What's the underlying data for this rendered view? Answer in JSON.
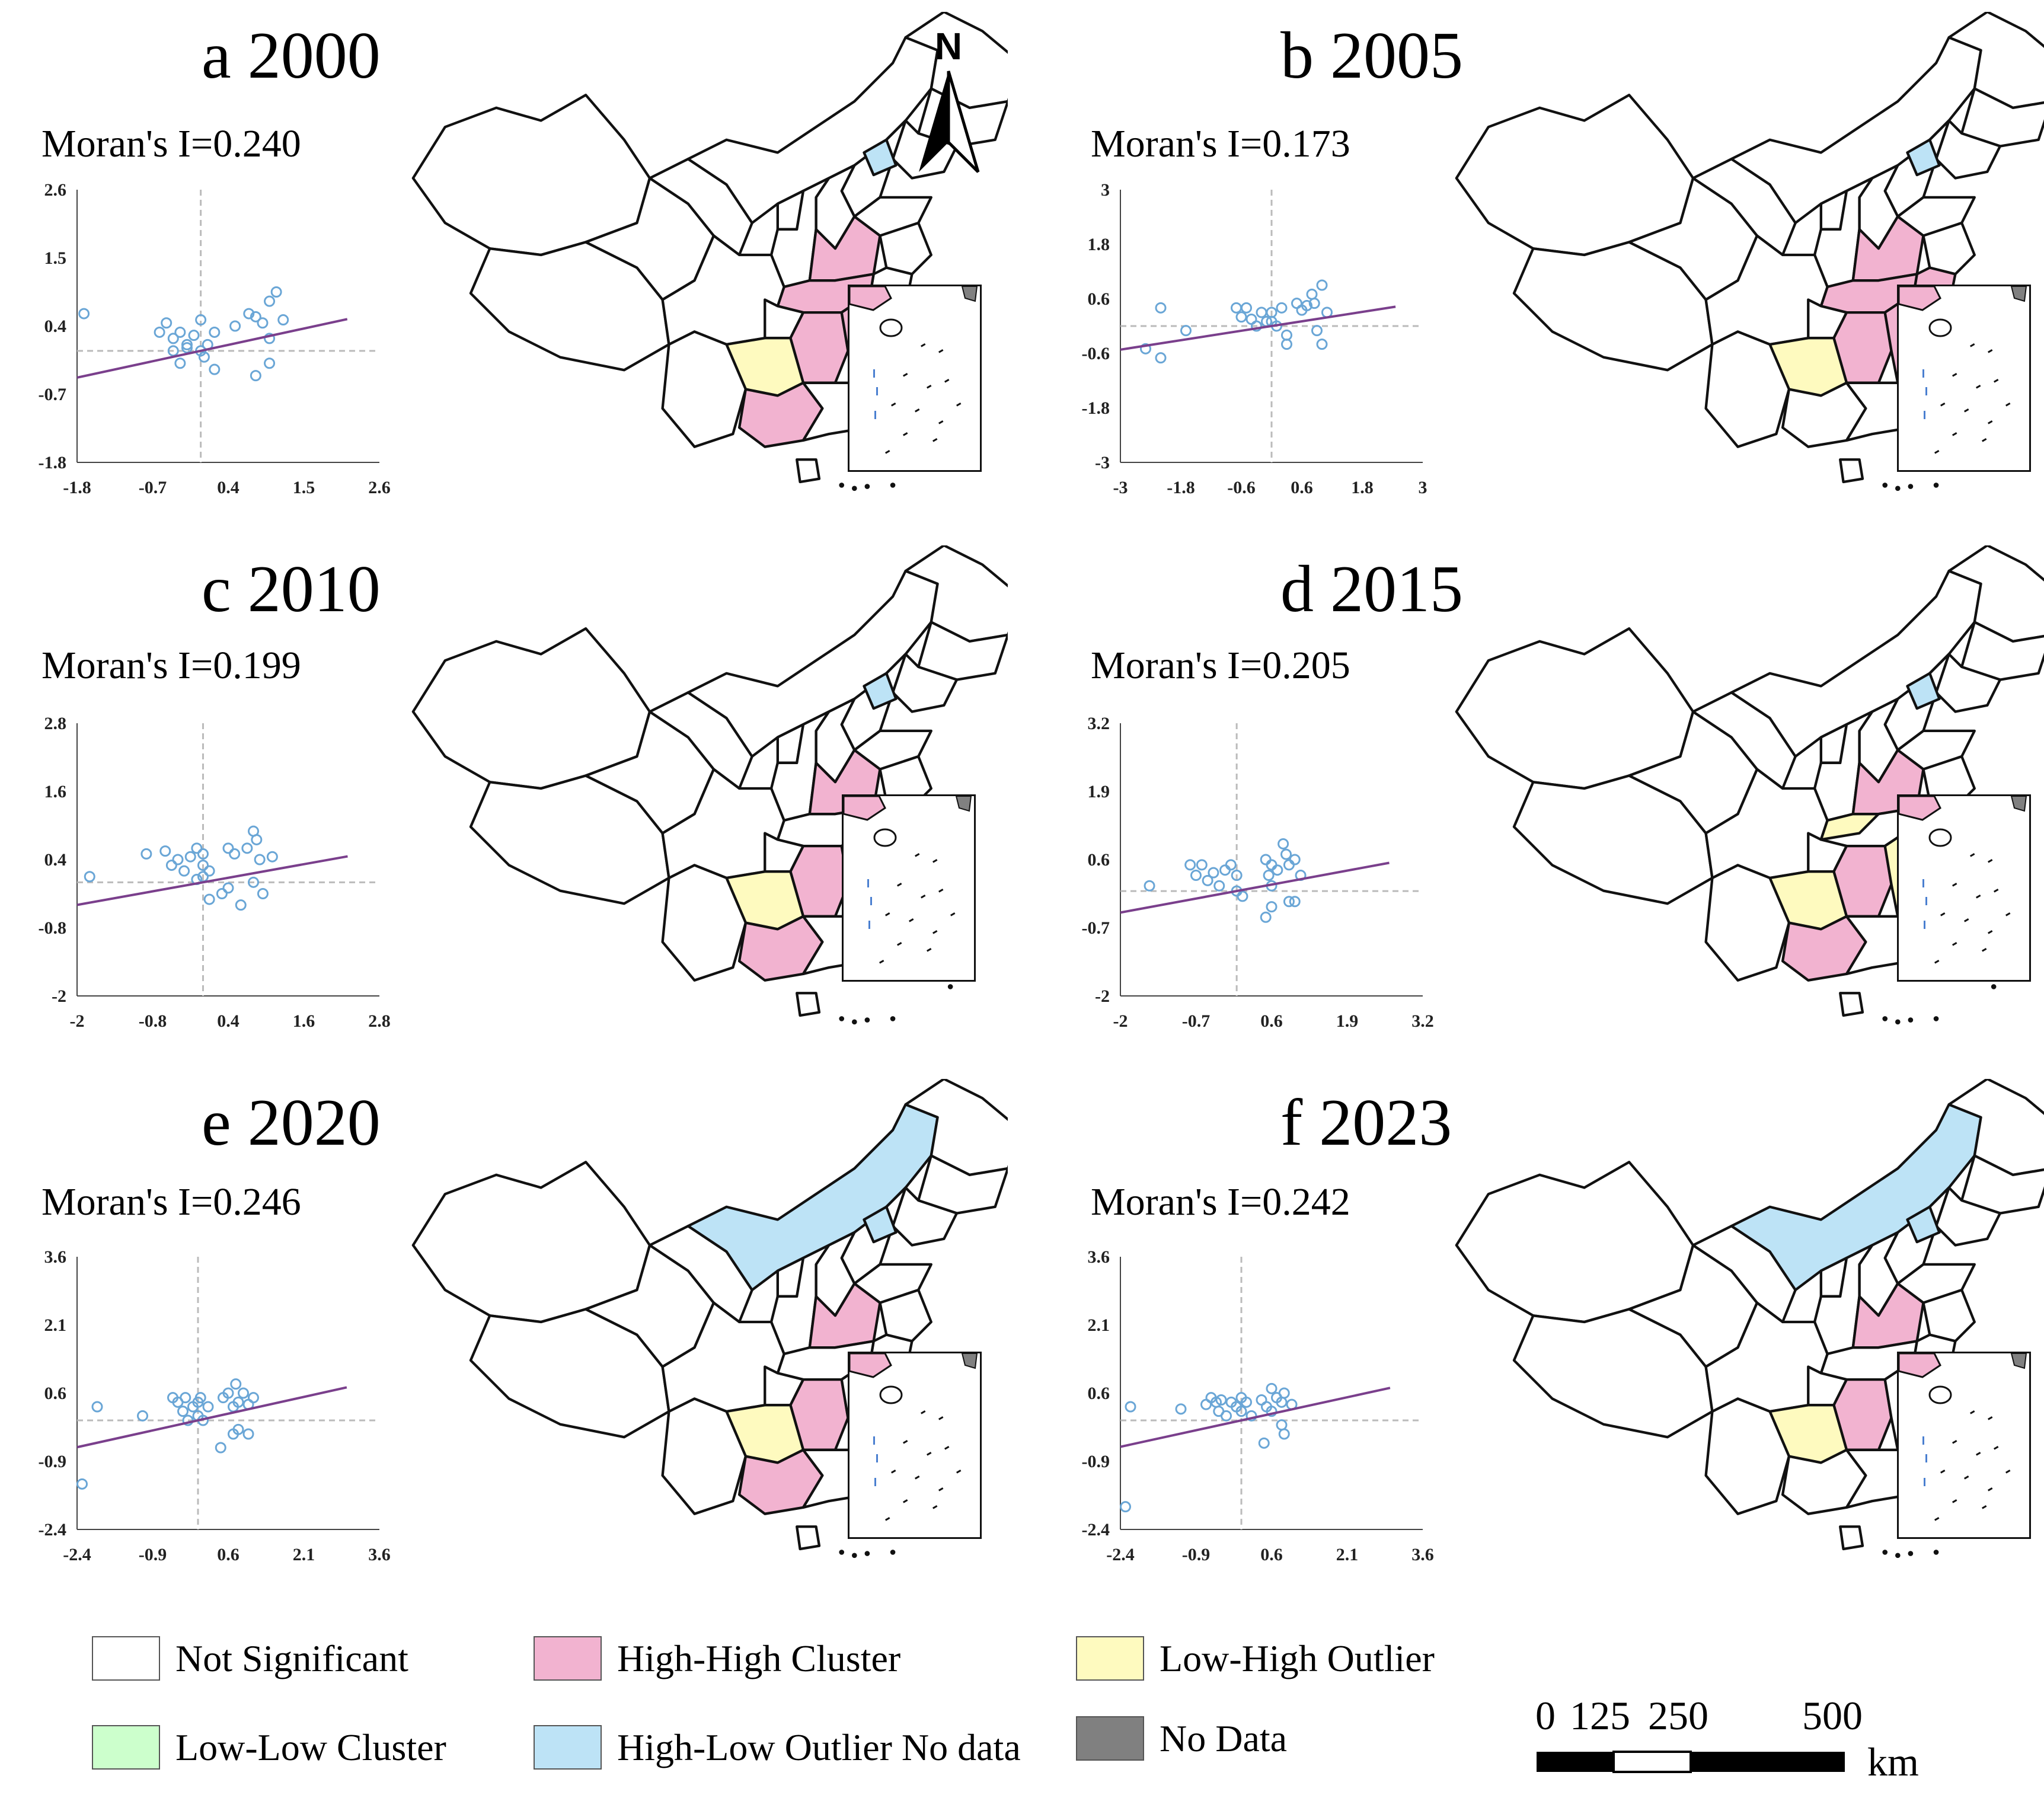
{
  "panels": [
    {
      "title": "a 2000",
      "moran": "Moran's I=0.240",
      "plot": {
        "xticks": [
          "-1.8",
          "-0.7",
          "0.4",
          "1.5",
          "2.6"
        ],
        "yticks": [
          "2.6",
          "1.5",
          "0.4",
          "-0.7",
          "-1.8"
        ],
        "xlim": [
          -1.8,
          2.6
        ],
        "ylim": [
          -1.8,
          2.6
        ],
        "slope": 0.24,
        "points": [
          [
            -1.7,
            0.6
          ],
          [
            -0.6,
            0.3
          ],
          [
            -0.5,
            0.45
          ],
          [
            -0.4,
            0.2
          ],
          [
            -0.3,
            0.3
          ],
          [
            -0.2,
            0.1
          ],
          [
            -0.1,
            0.25
          ],
          [
            0.0,
            0.5
          ],
          [
            0.1,
            0.1
          ],
          [
            0.2,
            0.3
          ],
          [
            -0.4,
            0.0
          ],
          [
            -0.3,
            -0.2
          ],
          [
            0.05,
            -0.1
          ],
          [
            0.2,
            -0.3
          ],
          [
            0.5,
            0.4
          ],
          [
            0.7,
            0.6
          ],
          [
            0.8,
            0.55
          ],
          [
            0.9,
            0.45
          ],
          [
            1.0,
            0.8
          ],
          [
            1.1,
            0.95
          ],
          [
            1.2,
            0.5
          ],
          [
            1.0,
            0.2
          ],
          [
            0.8,
            -0.4
          ],
          [
            1.0,
            -0.2
          ],
          [
            -0.2,
            0.05
          ],
          [
            0.0,
            0.0
          ]
        ],
        "xaxis_at": 0.0,
        "yaxis_at": 0.0
      },
      "map": {
        "hh": [
          "henan",
          "hubei",
          "hunan",
          "jiangxi",
          "guangxi"
        ],
        "lh": [
          "guizhou",
          "fujian"
        ],
        "hl": [
          "beijing"
        ]
      }
    },
    {
      "title": "b 2005",
      "moran": "Moran's I=0.173",
      "plot": {
        "xticks": [
          "-3",
          "-1.8",
          "-0.6",
          "0.6",
          "1.8",
          "3"
        ],
        "yticks": [
          "3",
          "1.8",
          "0.6",
          "-0.6",
          "-1.8",
          "-3"
        ],
        "xlim": [
          -3,
          3
        ],
        "ylim": [
          -3,
          3
        ],
        "slope": 0.173,
        "points": [
          [
            -2.5,
            -0.5
          ],
          [
            -2.2,
            -0.7
          ],
          [
            -2.2,
            0.4
          ],
          [
            -1.7,
            -0.1
          ],
          [
            -0.7,
            0.4
          ],
          [
            -0.6,
            0.2
          ],
          [
            -0.5,
            0.4
          ],
          [
            -0.4,
            0.15
          ],
          [
            -0.3,
            0.0
          ],
          [
            -0.2,
            0.3
          ],
          [
            -0.1,
            0.1
          ],
          [
            0.0,
            0.3
          ],
          [
            0.1,
            0.0
          ],
          [
            0.2,
            0.4
          ],
          [
            0.3,
            -0.2
          ],
          [
            0.3,
            -0.4
          ],
          [
            0.5,
            0.5
          ],
          [
            0.6,
            0.35
          ],
          [
            0.7,
            0.45
          ],
          [
            0.8,
            0.7
          ],
          [
            1.0,
            0.9
          ],
          [
            0.9,
            -0.1
          ],
          [
            1.0,
            -0.4
          ],
          [
            1.1,
            0.3
          ],
          [
            0.85,
            0.5
          ],
          [
            0.0,
            0.1
          ]
        ],
        "xaxis_at": 0.0,
        "yaxis_at": 0.0
      },
      "map": {
        "hh": [
          "henan",
          "hubei",
          "hunan",
          "jiangxi",
          "anhui"
        ],
        "lh": [
          "guizhou",
          "fujian"
        ],
        "hl": [
          "beijing"
        ]
      }
    },
    {
      "title": "c 2010",
      "moran": "Moran's I=0.199",
      "plot": {
        "xticks": [
          "-2",
          "-0.8",
          "0.4",
          "1.6",
          "2.8"
        ],
        "yticks": [
          "2.8",
          "1.6",
          "0.4",
          "-0.8",
          "-2"
        ],
        "xlim": [
          -2,
          2.8
        ],
        "ylim": [
          -2,
          2.8
        ],
        "slope": 0.199,
        "points": [
          [
            -1.8,
            0.1
          ],
          [
            -0.9,
            0.5
          ],
          [
            -0.6,
            0.55
          ],
          [
            -0.5,
            0.3
          ],
          [
            -0.4,
            0.4
          ],
          [
            -0.3,
            0.2
          ],
          [
            -0.2,
            0.45
          ],
          [
            -0.1,
            0.6
          ],
          [
            0.0,
            0.5
          ],
          [
            0.0,
            0.3
          ],
          [
            0.1,
            0.2
          ],
          [
            -0.1,
            0.05
          ],
          [
            0.1,
            -0.3
          ],
          [
            0.4,
            0.6
          ],
          [
            0.5,
            0.5
          ],
          [
            0.7,
            0.6
          ],
          [
            0.8,
            0.9
          ],
          [
            0.85,
            0.75
          ],
          [
            0.9,
            0.4
          ],
          [
            1.1,
            0.45
          ],
          [
            0.4,
            -0.1
          ],
          [
            0.6,
            -0.4
          ],
          [
            0.8,
            0.0
          ],
          [
            0.95,
            -0.2
          ],
          [
            0.3,
            -0.2
          ],
          [
            0.0,
            0.1
          ]
        ],
        "xaxis_at": 0.0,
        "yaxis_at": 0.0
      },
      "map": {
        "hh": [
          "henan",
          "hunan",
          "guangxi"
        ],
        "lh": [
          "guizhou",
          "fujian"
        ],
        "hl": [
          "beijing"
        ]
      }
    },
    {
      "title": "d 2015",
      "moran": "Moran's I=0.205",
      "plot": {
        "xticks": [
          "-2",
          "-0.7",
          "0.6",
          "1.9",
          "3.2"
        ],
        "yticks": [
          "3.2",
          "1.9",
          "0.6",
          "-0.7",
          "-2"
        ],
        "xlim": [
          -2,
          3.2
        ],
        "ylim": [
          -2,
          3.2
        ],
        "slope": 0.205,
        "points": [
          [
            -1.5,
            0.1
          ],
          [
            -0.8,
            0.5
          ],
          [
            -0.7,
            0.3
          ],
          [
            -0.6,
            0.5
          ],
          [
            -0.5,
            0.2
          ],
          [
            -0.4,
            0.35
          ],
          [
            -0.3,
            0.1
          ],
          [
            -0.2,
            0.4
          ],
          [
            -0.1,
            0.5
          ],
          [
            0.0,
            0.3
          ],
          [
            0.0,
            0.0
          ],
          [
            0.1,
            -0.1
          ],
          [
            0.5,
            0.6
          ],
          [
            0.55,
            0.3
          ],
          [
            0.6,
            0.5
          ],
          [
            0.7,
            0.4
          ],
          [
            0.8,
            0.9
          ],
          [
            0.85,
            0.7
          ],
          [
            0.9,
            0.5
          ],
          [
            1.0,
            0.6
          ],
          [
            1.1,
            0.3
          ],
          [
            0.5,
            -0.5
          ],
          [
            0.6,
            -0.3
          ],
          [
            0.9,
            -0.2
          ],
          [
            1.0,
            -0.2
          ],
          [
            0.6,
            0.1
          ]
        ],
        "xaxis_at": 0.0,
        "yaxis_at": 0.0
      },
      "map": {
        "hh": [
          "henan",
          "hunan",
          "guangxi"
        ],
        "lh": [
          "guizhou",
          "jiangxi",
          "hubei_lh"
        ],
        "hl": [
          "beijing"
        ]
      }
    },
    {
      "title": "e 2020",
      "moran": "Moran's I=0.246",
      "plot": {
        "xticks": [
          "-2.4",
          "-0.9",
          "0.6",
          "2.1",
          "3.6"
        ],
        "yticks": [
          "3.6",
          "2.1",
          "0.6",
          "-0.9",
          "-2.4"
        ],
        "xlim": [
          -2.4,
          3.6
        ],
        "ylim": [
          -2.4,
          3.6
        ],
        "slope": 0.246,
        "points": [
          [
            -2.3,
            -1.4
          ],
          [
            -2.0,
            0.3
          ],
          [
            -1.1,
            0.1
          ],
          [
            -0.5,
            0.5
          ],
          [
            -0.4,
            0.4
          ],
          [
            -0.3,
            0.2
          ],
          [
            -0.25,
            0.5
          ],
          [
            -0.2,
            0.0
          ],
          [
            -0.1,
            0.3
          ],
          [
            0.0,
            0.4
          ],
          [
            0.0,
            0.1
          ],
          [
            0.05,
            0.5
          ],
          [
            0.1,
            0.0
          ],
          [
            0.5,
            0.5
          ],
          [
            0.6,
            0.6
          ],
          [
            0.7,
            0.3
          ],
          [
            0.75,
            0.8
          ],
          [
            0.8,
            0.4
          ],
          [
            0.9,
            0.6
          ],
          [
            1.0,
            0.35
          ],
          [
            1.1,
            0.5
          ],
          [
            0.7,
            -0.3
          ],
          [
            0.8,
            -0.2
          ],
          [
            1.0,
            -0.3
          ],
          [
            0.45,
            -0.6
          ],
          [
            0.2,
            0.3
          ]
        ],
        "xaxis_at": 0.0,
        "yaxis_at": 0.0
      },
      "map": {
        "hh": [
          "henan",
          "hunan",
          "guangxi"
        ],
        "lh": [
          "guizhou",
          "fujian"
        ],
        "hl": [
          "beijing",
          "innermongolia"
        ]
      }
    },
    {
      "title": "f 2023",
      "moran": "Moran's I=0.242",
      "plot": {
        "xticks": [
          "-2.4",
          "-0.9",
          "0.6",
          "2.1",
          "3.6"
        ],
        "yticks": [
          "3.6",
          "2.1",
          "0.6",
          "-0.9",
          "-2.4"
        ],
        "xlim": [
          -2.4,
          3.6
        ],
        "ylim": [
          -2.4,
          3.6
        ],
        "slope": 0.242,
        "points": [
          [
            -2.3,
            -1.9
          ],
          [
            -2.2,
            0.3
          ],
          [
            -1.2,
            0.25
          ],
          [
            -0.7,
            0.35
          ],
          [
            -0.6,
            0.5
          ],
          [
            -0.5,
            0.4
          ],
          [
            -0.45,
            0.2
          ],
          [
            -0.4,
            0.45
          ],
          [
            -0.3,
            0.1
          ],
          [
            -0.2,
            0.4
          ],
          [
            -0.1,
            0.3
          ],
          [
            0.0,
            0.5
          ],
          [
            0.0,
            0.2
          ],
          [
            0.1,
            0.4
          ],
          [
            0.4,
            0.45
          ],
          [
            0.5,
            0.3
          ],
          [
            0.6,
            0.7
          ],
          [
            0.7,
            0.5
          ],
          [
            0.8,
            0.4
          ],
          [
            0.85,
            0.6
          ],
          [
            1.0,
            0.35
          ],
          [
            0.45,
            -0.5
          ],
          [
            0.8,
            -0.1
          ],
          [
            0.85,
            -0.3
          ],
          [
            0.2,
            0.1
          ],
          [
            0.6,
            0.2
          ]
        ],
        "xaxis_at": 0.0,
        "yaxis_at": 0.0
      },
      "map": {
        "hh": [
          "henan",
          "hunan"
        ],
        "lh": [
          "guizhou"
        ],
        "hl": [
          "beijing",
          "innermongolia"
        ]
      }
    }
  ],
  "north_label": "N",
  "legend": [
    {
      "label": "Not Significant",
      "color": "#ffffff"
    },
    {
      "label": "High-High Cluster",
      "color": "#f2b3d0"
    },
    {
      "label": "Low-High Outlier",
      "color": "#fefabf"
    },
    {
      "label": "Low-Low Cluster",
      "color": "#ccffcc"
    },
    {
      "label": "High-Low Outlier No data",
      "color": "#bde3f6"
    },
    {
      "label": "No Data",
      "color": "#808080"
    }
  ],
  "scale": {
    "ticks": [
      "0",
      "125",
      "250",
      "500"
    ],
    "unit": "km"
  },
  "colors": {
    "hh": "#f2b3d0",
    "lh": "#fefabf",
    "hl": "#bde3f6",
    "nodata": "#808080",
    "point": "#6aa6d6",
    "line": "#7a3f8c"
  }
}
